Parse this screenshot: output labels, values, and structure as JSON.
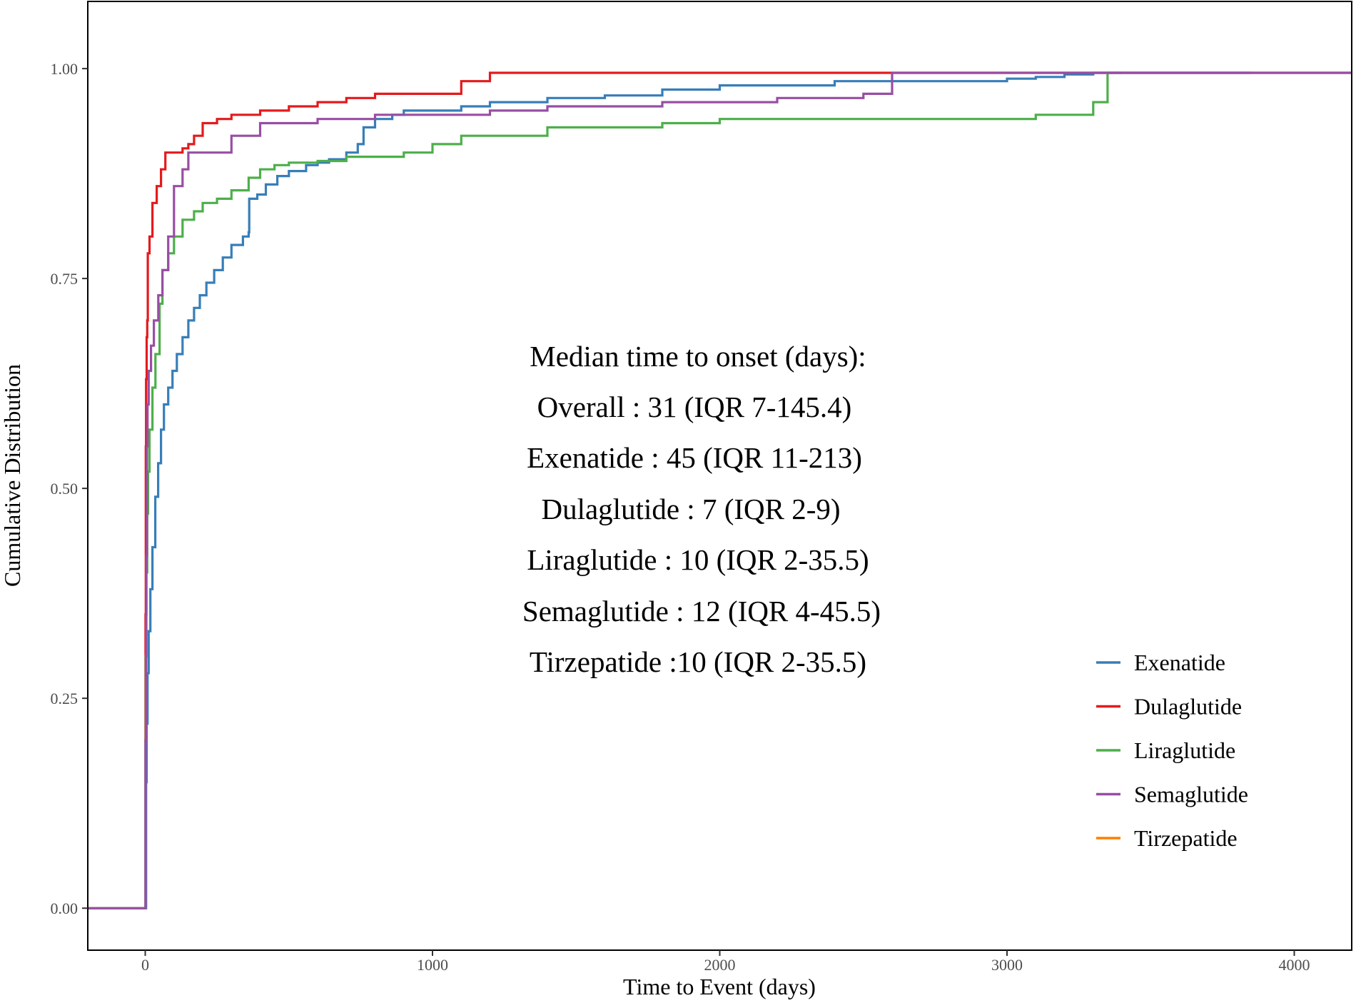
{
  "chart_data": {
    "type": "line",
    "step": true,
    "xlabel": "Time to Event  (days)",
    "ylabel": "Cumulative Distribution",
    "xlim": [
      -200,
      4200
    ],
    "ylim": [
      -0.05,
      1.08
    ],
    "xticks": [
      0,
      1000,
      2000,
      3000,
      4000
    ],
    "xtick_labels": [
      "0",
      "1000",
      "2000",
      "3000",
      "4000"
    ],
    "yticks": [
      0,
      0.25,
      0.5,
      0.75,
      1.0
    ],
    "ytick_labels": [
      "0.00",
      "0.25",
      "0.50",
      "0.75",
      "1.00"
    ],
    "grid": false,
    "legend_position": "bottom-right",
    "annotations": [
      "Median time to onset (days):",
      "Overall : 31 (IQR 7-145.4)",
      "Exenatide : 45 (IQR 11-213)",
      "Dulaglutide : 7 (IQR 2-9)",
      "Liraglutide : 10 (IQR 2-35.5)",
      "Semaglutide : 12 (IQR 4-45.5)",
      "Tirzepatide :10 (IQR 2-35.5)"
    ],
    "series": [
      {
        "name": "Exenatide",
        "color": "#377EB8",
        "points": [
          [
            -200,
            0
          ],
          [
            0,
            0
          ],
          [
            3,
            0.15
          ],
          [
            5,
            0.22
          ],
          [
            8,
            0.28
          ],
          [
            12,
            0.33
          ],
          [
            18,
            0.38
          ],
          [
            25,
            0.43
          ],
          [
            35,
            0.49
          ],
          [
            45,
            0.53
          ],
          [
            55,
            0.57
          ],
          [
            65,
            0.6
          ],
          [
            80,
            0.62
          ],
          [
            95,
            0.64
          ],
          [
            110,
            0.66
          ],
          [
            130,
            0.68
          ],
          [
            150,
            0.7
          ],
          [
            170,
            0.715
          ],
          [
            190,
            0.73
          ],
          [
            213,
            0.745
          ],
          [
            240,
            0.76
          ],
          [
            270,
            0.775
          ],
          [
            300,
            0.79
          ],
          [
            340,
            0.8
          ],
          [
            360,
            0.805
          ],
          [
            362,
            0.845
          ],
          [
            390,
            0.85
          ],
          [
            420,
            0.862
          ],
          [
            460,
            0.872
          ],
          [
            500,
            0.878
          ],
          [
            560,
            0.885
          ],
          [
            600,
            0.888
          ],
          [
            640,
            0.892
          ],
          [
            700,
            0.9
          ],
          [
            740,
            0.91
          ],
          [
            760,
            0.93
          ],
          [
            800,
            0.94
          ],
          [
            860,
            0.945
          ],
          [
            900,
            0.95
          ],
          [
            1000,
            0.95
          ],
          [
            1100,
            0.955
          ],
          [
            1200,
            0.96
          ],
          [
            1400,
            0.965
          ],
          [
            1600,
            0.968
          ],
          [
            1800,
            0.975
          ],
          [
            2000,
            0.98
          ],
          [
            2400,
            0.985
          ],
          [
            2600,
            0.985
          ],
          [
            3000,
            0.988
          ],
          [
            3100,
            0.99
          ],
          [
            3200,
            0.993
          ],
          [
            3300,
            0.995
          ],
          [
            3850,
            0.995
          ]
        ]
      },
      {
        "name": "Dulaglutide",
        "color": "#E41A1C",
        "points": [
          [
            -200,
            0
          ],
          [
            0,
            0
          ],
          [
            1,
            0.35
          ],
          [
            2,
            0.55
          ],
          [
            3,
            0.63
          ],
          [
            5,
            0.68
          ],
          [
            7,
            0.7
          ],
          [
            9,
            0.78
          ],
          [
            15,
            0.8
          ],
          [
            25,
            0.84
          ],
          [
            40,
            0.86
          ],
          [
            55,
            0.88
          ],
          [
            70,
            0.9
          ],
          [
            100,
            0.9
          ],
          [
            130,
            0.905
          ],
          [
            150,
            0.91
          ],
          [
            170,
            0.92
          ],
          [
            200,
            0.935
          ],
          [
            250,
            0.94
          ],
          [
            300,
            0.945
          ],
          [
            400,
            0.95
          ],
          [
            500,
            0.955
          ],
          [
            600,
            0.96
          ],
          [
            700,
            0.965
          ],
          [
            800,
            0.97
          ],
          [
            1100,
            0.985
          ],
          [
            1200,
            0.995
          ],
          [
            2560,
            0.995
          ],
          [
            4200,
            0.995
          ]
        ]
      },
      {
        "name": "Liraglutide",
        "color": "#4DAF4A",
        "points": [
          [
            -200,
            0
          ],
          [
            0,
            0
          ],
          [
            1,
            0.2
          ],
          [
            2,
            0.3
          ],
          [
            4,
            0.4
          ],
          [
            7,
            0.47
          ],
          [
            10,
            0.52
          ],
          [
            15,
            0.57
          ],
          [
            25,
            0.62
          ],
          [
            35.5,
            0.66
          ],
          [
            50,
            0.72
          ],
          [
            60,
            0.76
          ],
          [
            80,
            0.78
          ],
          [
            100,
            0.8
          ],
          [
            130,
            0.82
          ],
          [
            170,
            0.83
          ],
          [
            200,
            0.84
          ],
          [
            250,
            0.845
          ],
          [
            300,
            0.855
          ],
          [
            360,
            0.87
          ],
          [
            400,
            0.88
          ],
          [
            450,
            0.885
          ],
          [
            500,
            0.888
          ],
          [
            600,
            0.89
          ],
          [
            700,
            0.895
          ],
          [
            900,
            0.9
          ],
          [
            1000,
            0.91
          ],
          [
            1100,
            0.92
          ],
          [
            1400,
            0.93
          ],
          [
            1800,
            0.935
          ],
          [
            2000,
            0.94
          ],
          [
            2600,
            0.94
          ],
          [
            3100,
            0.945
          ],
          [
            3300,
            0.96
          ],
          [
            3350,
            0.995
          ],
          [
            3400,
            0.995
          ]
        ]
      },
      {
        "name": "Semaglutide",
        "color": "#984EA3",
        "points": [
          [
            -200,
            0
          ],
          [
            0,
            0
          ],
          [
            1,
            0.2
          ],
          [
            3,
            0.35
          ],
          [
            4,
            0.42
          ],
          [
            6,
            0.55
          ],
          [
            8,
            0.6
          ],
          [
            12,
            0.64
          ],
          [
            20,
            0.67
          ],
          [
            30,
            0.7
          ],
          [
            45.5,
            0.73
          ],
          [
            60,
            0.76
          ],
          [
            80,
            0.8
          ],
          [
            100,
            0.86
          ],
          [
            130,
            0.88
          ],
          [
            150,
            0.9
          ],
          [
            200,
            0.9
          ],
          [
            300,
            0.92
          ],
          [
            400,
            0.935
          ],
          [
            500,
            0.935
          ],
          [
            600,
            0.94
          ],
          [
            700,
            0.94
          ],
          [
            800,
            0.945
          ],
          [
            1000,
            0.945
          ],
          [
            1200,
            0.95
          ],
          [
            1400,
            0.955
          ],
          [
            1800,
            0.96
          ],
          [
            2200,
            0.965
          ],
          [
            2500,
            0.97
          ],
          [
            2600,
            0.995
          ],
          [
            3000,
            0.995
          ],
          [
            4200,
            0.995
          ]
        ]
      },
      {
        "name": "Tirzepatide",
        "color": "#FF7F00",
        "points": []
      }
    ]
  }
}
